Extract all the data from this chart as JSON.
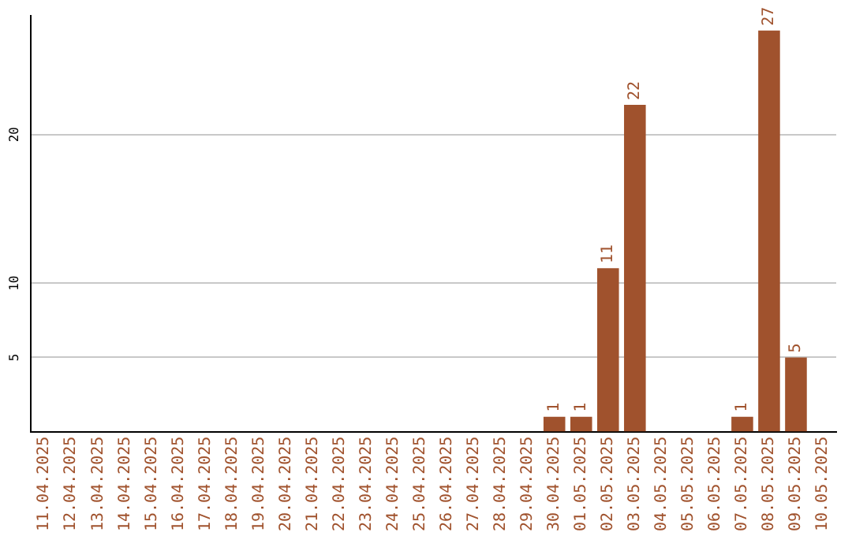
{
  "chart_data": {
    "type": "bar",
    "categories": [
      "11.04.2025",
      "12.04.2025",
      "13.04.2025",
      "14.04.2025",
      "15.04.2025",
      "16.04.2025",
      "17.04.2025",
      "18.04.2025",
      "19.04.2025",
      "20.04.2025",
      "21.04.2025",
      "22.04.2025",
      "23.04.2025",
      "24.04.2025",
      "25.04.2025",
      "26.04.2025",
      "27.04.2025",
      "28.04.2025",
      "29.04.2025",
      "30.04.2025",
      "01.05.2025",
      "02.05.2025",
      "03.05.2025",
      "04.05.2025",
      "05.05.2025",
      "06.05.2025",
      "07.05.2025",
      "08.05.2025",
      "09.05.2025",
      "10.05.2025"
    ],
    "values": [
      0,
      0,
      0,
      0,
      0,
      0,
      0,
      0,
      0,
      0,
      0,
      0,
      0,
      0,
      0,
      0,
      0,
      0,
      0,
      1,
      1,
      11,
      22,
      0,
      0,
      0,
      1,
      27,
      5,
      0
    ],
    "value_labels": [
      null,
      null,
      null,
      null,
      null,
      null,
      null,
      null,
      null,
      null,
      null,
      null,
      null,
      null,
      null,
      null,
      null,
      null,
      null,
      "1",
      "1",
      "11",
      "22",
      null,
      null,
      null,
      "1",
      "27",
      "5",
      null
    ],
    "color": "#a0522d",
    "ylim": [
      0,
      28
    ],
    "yticks": [
      5,
      10,
      20
    ],
    "grid": "y",
    "legend": false
  }
}
